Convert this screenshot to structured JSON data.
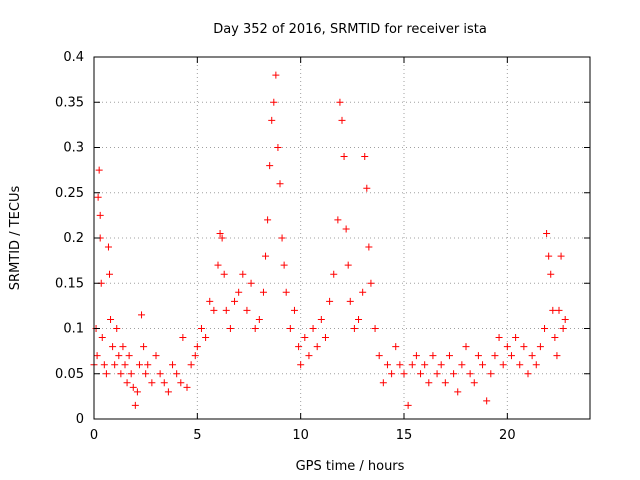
{
  "chart_data": {
    "type": "scatter",
    "title": "Day 352 of 2016, SRMTID for receiver ista",
    "xlabel": "GPS time / hours",
    "ylabel": "SRMTID / TECUs",
    "xlim": [
      0,
      24
    ],
    "ylim": [
      0,
      0.4
    ],
    "x_ticks": [
      0,
      5,
      10,
      15,
      20
    ],
    "x_tick_labels": [
      "0",
      "5",
      "10",
      "15",
      "20"
    ],
    "y_ticks": [
      0,
      0.05,
      0.1,
      0.15,
      0.2,
      0.25,
      0.3,
      0.35,
      0.4
    ],
    "y_tick_labels": [
      "0",
      "0.05",
      "0.1",
      "0.15",
      "0.2",
      "0.25",
      "0.3",
      "0.35",
      "0.4"
    ],
    "grid": true,
    "marker": "+",
    "colors": {
      "points": "#ff0000",
      "grid": "#a0a0a0",
      "axes": "#000000"
    },
    "series": [
      {
        "name": "SRMTID",
        "points": [
          [
            0.0,
            0.06
          ],
          [
            0.1,
            0.1
          ],
          [
            0.15,
            0.07
          ],
          [
            0.2,
            0.245
          ],
          [
            0.25,
            0.275
          ],
          [
            0.3,
            0.225
          ],
          [
            0.3,
            0.2
          ],
          [
            0.35,
            0.15
          ],
          [
            0.4,
            0.09
          ],
          [
            0.5,
            0.06
          ],
          [
            0.6,
            0.05
          ],
          [
            0.7,
            0.19
          ],
          [
            0.75,
            0.16
          ],
          [
            0.8,
            0.11
          ],
          [
            0.9,
            0.08
          ],
          [
            1.0,
            0.06
          ],
          [
            1.1,
            0.1
          ],
          [
            1.2,
            0.07
          ],
          [
            1.3,
            0.05
          ],
          [
            1.4,
            0.08
          ],
          [
            1.5,
            0.06
          ],
          [
            1.6,
            0.04
          ],
          [
            1.7,
            0.07
          ],
          [
            1.8,
            0.05
          ],
          [
            1.9,
            0.035
          ],
          [
            2.0,
            0.015
          ],
          [
            2.1,
            0.03
          ],
          [
            2.2,
            0.06
          ],
          [
            2.3,
            0.115
          ],
          [
            2.4,
            0.08
          ],
          [
            2.5,
            0.05
          ],
          [
            2.6,
            0.06
          ],
          [
            2.8,
            0.04
          ],
          [
            3.0,
            0.07
          ],
          [
            3.2,
            0.05
          ],
          [
            3.4,
            0.04
          ],
          [
            3.6,
            0.03
          ],
          [
            3.8,
            0.06
          ],
          [
            4.0,
            0.05
          ],
          [
            4.2,
            0.04
          ],
          [
            4.3,
            0.09
          ],
          [
            4.5,
            0.035
          ],
          [
            4.7,
            0.06
          ],
          [
            4.9,
            0.07
          ],
          [
            5.0,
            0.08
          ],
          [
            5.2,
            0.1
          ],
          [
            5.4,
            0.09
          ],
          [
            5.6,
            0.13
          ],
          [
            5.8,
            0.12
          ],
          [
            6.0,
            0.17
          ],
          [
            6.1,
            0.205
          ],
          [
            6.2,
            0.2
          ],
          [
            6.3,
            0.16
          ],
          [
            6.4,
            0.12
          ],
          [
            6.6,
            0.1
          ],
          [
            6.8,
            0.13
          ],
          [
            7.0,
            0.14
          ],
          [
            7.2,
            0.16
          ],
          [
            7.4,
            0.12
          ],
          [
            7.6,
            0.15
          ],
          [
            7.8,
            0.1
          ],
          [
            8.0,
            0.11
          ],
          [
            8.2,
            0.14
          ],
          [
            8.3,
            0.18
          ],
          [
            8.4,
            0.22
          ],
          [
            8.5,
            0.28
          ],
          [
            8.6,
            0.33
          ],
          [
            8.7,
            0.35
          ],
          [
            8.8,
            0.38
          ],
          [
            8.9,
            0.3
          ],
          [
            9.0,
            0.26
          ],
          [
            9.1,
            0.2
          ],
          [
            9.2,
            0.17
          ],
          [
            9.3,
            0.14
          ],
          [
            9.5,
            0.1
          ],
          [
            9.7,
            0.12
          ],
          [
            9.9,
            0.08
          ],
          [
            10.0,
            0.06
          ],
          [
            10.2,
            0.09
          ],
          [
            10.4,
            0.07
          ],
          [
            10.6,
            0.1
          ],
          [
            10.8,
            0.08
          ],
          [
            11.0,
            0.11
          ],
          [
            11.2,
            0.09
          ],
          [
            11.4,
            0.13
          ],
          [
            11.6,
            0.16
          ],
          [
            11.8,
            0.22
          ],
          [
            11.9,
            0.35
          ],
          [
            12.0,
            0.33
          ],
          [
            12.1,
            0.29
          ],
          [
            12.2,
            0.21
          ],
          [
            12.3,
            0.17
          ],
          [
            12.4,
            0.13
          ],
          [
            12.6,
            0.1
          ],
          [
            12.8,
            0.11
          ],
          [
            13.0,
            0.14
          ],
          [
            13.1,
            0.29
          ],
          [
            13.2,
            0.255
          ],
          [
            13.3,
            0.19
          ],
          [
            13.4,
            0.15
          ],
          [
            13.6,
            0.1
          ],
          [
            13.8,
            0.07
          ],
          [
            14.0,
            0.04
          ],
          [
            14.2,
            0.06
          ],
          [
            14.4,
            0.05
          ],
          [
            14.6,
            0.08
          ],
          [
            14.8,
            0.06
          ],
          [
            15.0,
            0.05
          ],
          [
            15.2,
            0.015
          ],
          [
            15.4,
            0.06
          ],
          [
            15.6,
            0.07
          ],
          [
            15.8,
            0.05
          ],
          [
            16.0,
            0.06
          ],
          [
            16.2,
            0.04
          ],
          [
            16.4,
            0.07
          ],
          [
            16.6,
            0.05
          ],
          [
            16.8,
            0.06
          ],
          [
            17.0,
            0.04
          ],
          [
            17.2,
            0.07
          ],
          [
            17.4,
            0.05
          ],
          [
            17.6,
            0.03
          ],
          [
            17.8,
            0.06
          ],
          [
            18.0,
            0.08
          ],
          [
            18.2,
            0.05
          ],
          [
            18.4,
            0.04
          ],
          [
            18.6,
            0.07
          ],
          [
            18.8,
            0.06
          ],
          [
            19.0,
            0.02
          ],
          [
            19.2,
            0.05
          ],
          [
            19.4,
            0.07
          ],
          [
            19.6,
            0.09
          ],
          [
            19.8,
            0.06
          ],
          [
            20.0,
            0.08
          ],
          [
            20.2,
            0.07
          ],
          [
            20.4,
            0.09
          ],
          [
            20.6,
            0.06
          ],
          [
            20.8,
            0.08
          ],
          [
            21.0,
            0.05
          ],
          [
            21.2,
            0.07
          ],
          [
            21.4,
            0.06
          ],
          [
            21.6,
            0.08
          ],
          [
            21.8,
            0.1
          ],
          [
            21.9,
            0.205
          ],
          [
            22.0,
            0.18
          ],
          [
            22.1,
            0.16
          ],
          [
            22.2,
            0.12
          ],
          [
            22.3,
            0.09
          ],
          [
            22.4,
            0.07
          ],
          [
            22.5,
            0.12
          ],
          [
            22.6,
            0.18
          ],
          [
            22.7,
            0.1
          ],
          [
            22.8,
            0.11
          ]
        ]
      }
    ]
  }
}
